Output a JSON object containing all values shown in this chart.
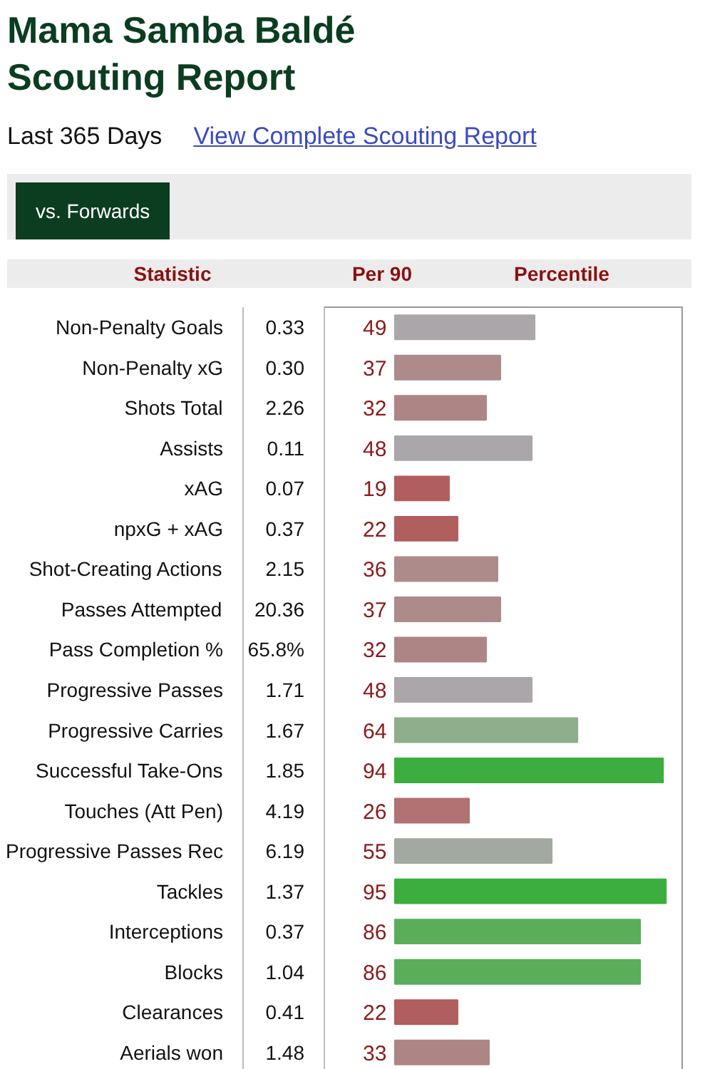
{
  "chart_data": {
    "type": "bar",
    "orientation": "horizontal",
    "title": "Mama Samba Baldé Scouting Report",
    "subtitle": "Last 365 Days",
    "categories": [
      "Non-Penalty Goals",
      "Non-Penalty xG",
      "Shots Total",
      "Assists",
      "xAG",
      "npxG + xAG",
      "Shot-Creating Actions",
      "Passes Attempted",
      "Pass Completion %",
      "Progressive Passes",
      "Progressive Carries",
      "Successful Take-Ons",
      "Touches (Att Pen)",
      "Progressive Passes Rec",
      "Tackles",
      "Interceptions",
      "Blocks",
      "Clearances",
      "Aerials won"
    ],
    "values": [
      49,
      37,
      32,
      48,
      19,
      22,
      36,
      37,
      32,
      48,
      64,
      94,
      26,
      55,
      95,
      86,
      86,
      22,
      33
    ],
    "colors": [
      "#aaa6aa",
      "#ad8b8b",
      "#ae8585",
      "#aaa6aa",
      "#b05e5e",
      "#b05e5e",
      "#ad8b8b",
      "#ad8b8b",
      "#ae8585",
      "#aaa6aa",
      "#8fae8c",
      "#3cae3f",
      "#b07272",
      "#a2a9a0",
      "#3cae3f",
      "#5aae5a",
      "#5aae5a",
      "#b05e5e",
      "#ae8585"
    ],
    "data_labels": true,
    "annotations": [
      "View Complete Scouting Report",
      "vs. Forwards",
      "Statistic",
      "Per 90",
      "Percentile",
      "0.33",
      "0.30",
      "2.26",
      "0.11",
      "0.07",
      "0.37",
      "2.15",
      "20.36",
      "65.8%",
      "1.71",
      "1.67",
      "1.85",
      "4.19",
      "6.19",
      "1.37",
      "0.37",
      "1.04",
      "0.41",
      "1.48"
    ]
  }
}
